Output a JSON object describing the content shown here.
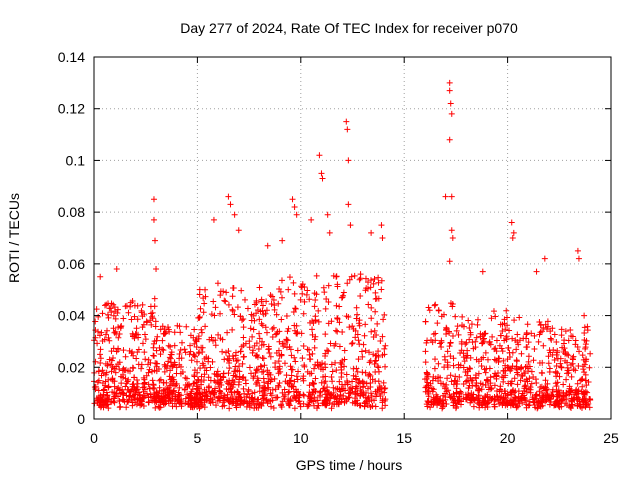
{
  "chart_data": {
    "type": "scatter",
    "title": "Day 277 of 2024, Rate Of TEC Index for receiver p070",
    "xlabel": "GPS time / hours",
    "ylabel": "ROTI / TECUs",
    "xlim": [
      0,
      25
    ],
    "ylim": [
      0,
      0.14
    ],
    "xticks": [
      0,
      5,
      10,
      15,
      20,
      25
    ],
    "xtick_labels": [
      "0",
      "5",
      "10",
      "15",
      "20",
      "25"
    ],
    "yticks": [
      0,
      0.02,
      0.04,
      0.06,
      0.08,
      0.1,
      0.12,
      0.14
    ],
    "ytick_labels": [
      "0",
      "0.02",
      "0.04",
      "0.06",
      "0.08",
      "0.1",
      "0.12",
      "0.14"
    ],
    "grid": true,
    "marker": "+",
    "marker_color": "#ff0000",
    "data_gap_hours": [
      14.1,
      16.0
    ],
    "series": [
      {
        "name": "ROTI p070",
        "description": "dense ROTI samples ~0.005-0.04 TECU/s across 0-14h and 16-24h",
        "outliers": [
          {
            "x": 0.3,
            "y": 0.055
          },
          {
            "x": 1.1,
            "y": 0.058
          },
          {
            "x": 2.9,
            "y": 0.085
          },
          {
            "x": 2.9,
            "y": 0.077
          },
          {
            "x": 2.95,
            "y": 0.069
          },
          {
            "x": 3.0,
            "y": 0.058
          },
          {
            "x": 5.8,
            "y": 0.077
          },
          {
            "x": 6.5,
            "y": 0.086
          },
          {
            "x": 6.6,
            "y": 0.083
          },
          {
            "x": 6.8,
            "y": 0.079
          },
          {
            "x": 7.0,
            "y": 0.073
          },
          {
            "x": 8.4,
            "y": 0.067
          },
          {
            "x": 9.1,
            "y": 0.069
          },
          {
            "x": 9.6,
            "y": 0.085
          },
          {
            "x": 9.7,
            "y": 0.082
          },
          {
            "x": 9.8,
            "y": 0.079
          },
          {
            "x": 10.5,
            "y": 0.077
          },
          {
            "x": 10.9,
            "y": 0.102
          },
          {
            "x": 11.0,
            "y": 0.095
          },
          {
            "x": 11.05,
            "y": 0.093
          },
          {
            "x": 11.3,
            "y": 0.079
          },
          {
            "x": 11.4,
            "y": 0.072
          },
          {
            "x": 12.2,
            "y": 0.115
          },
          {
            "x": 12.25,
            "y": 0.112
          },
          {
            "x": 12.3,
            "y": 0.1
          },
          {
            "x": 12.3,
            "y": 0.083
          },
          {
            "x": 12.4,
            "y": 0.075
          },
          {
            "x": 13.4,
            "y": 0.072
          },
          {
            "x": 13.9,
            "y": 0.075
          },
          {
            "x": 13.95,
            "y": 0.07
          },
          {
            "x": 17.2,
            "y": 0.13
          },
          {
            "x": 17.2,
            "y": 0.127
          },
          {
            "x": 17.25,
            "y": 0.122
          },
          {
            "x": 17.3,
            "y": 0.118
          },
          {
            "x": 17.2,
            "y": 0.108
          },
          {
            "x": 17.0,
            "y": 0.086
          },
          {
            "x": 17.3,
            "y": 0.086
          },
          {
            "x": 17.3,
            "y": 0.073
          },
          {
            "x": 17.35,
            "y": 0.07
          },
          {
            "x": 17.2,
            "y": 0.061
          },
          {
            "x": 18.8,
            "y": 0.057
          },
          {
            "x": 20.2,
            "y": 0.076
          },
          {
            "x": 20.3,
            "y": 0.072
          },
          {
            "x": 20.25,
            "y": 0.07
          },
          {
            "x": 21.4,
            "y": 0.057
          },
          {
            "x": 21.8,
            "y": 0.062
          },
          {
            "x": 23.4,
            "y": 0.065
          },
          {
            "x": 23.45,
            "y": 0.062
          },
          {
            "x": 23.7,
            "y": 0.04
          }
        ]
      }
    ]
  }
}
